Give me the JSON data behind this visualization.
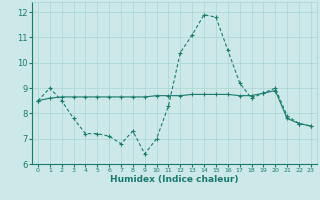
{
  "xlabel": "Humidex (Indice chaleur)",
  "ylabel": "",
  "xlim": [
    -0.5,
    23.5
  ],
  "ylim": [
    6,
    12.4
  ],
  "yticks": [
    6,
    7,
    8,
    9,
    10,
    11,
    12
  ],
  "xtick_labels": [
    "0",
    "1",
    "2",
    "3",
    "4",
    "5",
    "6",
    "7",
    "8",
    "9",
    "10",
    "11",
    "12",
    "13",
    "14",
    "15",
    "16",
    "17",
    "18",
    "19",
    "20",
    "21",
    "22",
    "23"
  ],
  "bg_color": "#cce8e8",
  "line_color": "#1a7a6e",
  "grid_color": "#aad4d4",
  "line1_x": [
    0,
    1,
    2,
    3,
    4,
    5,
    6,
    7,
    8,
    9,
    10,
    11,
    12,
    13,
    14,
    15,
    16,
    17,
    18,
    19,
    20,
    21,
    22,
    23
  ],
  "line1_y": [
    8.5,
    9.0,
    8.5,
    7.8,
    7.2,
    7.2,
    7.1,
    6.8,
    7.3,
    6.4,
    7.0,
    8.3,
    10.4,
    11.1,
    11.9,
    11.8,
    10.5,
    9.2,
    8.6,
    8.8,
    9.0,
    7.9,
    7.6,
    7.5
  ],
  "line2_x": [
    0,
    1,
    2,
    3,
    4,
    5,
    6,
    7,
    8,
    9,
    10,
    11,
    12,
    13,
    14,
    15,
    16,
    17,
    18,
    19,
    20,
    21,
    22,
    23
  ],
  "line2_y": [
    8.5,
    8.6,
    8.65,
    8.65,
    8.65,
    8.65,
    8.65,
    8.65,
    8.65,
    8.65,
    8.7,
    8.7,
    8.7,
    8.75,
    8.75,
    8.75,
    8.75,
    8.7,
    8.7,
    8.8,
    8.9,
    7.8,
    7.6,
    7.5
  ]
}
